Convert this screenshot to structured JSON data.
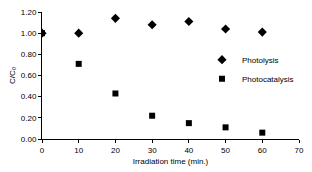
{
  "chart_data": {
    "type": "scatter",
    "x_label": "Irradiation time (min.)",
    "y_label": "C/C₀",
    "series": [
      {
        "name": "Photolysis",
        "color": "#000000",
        "marker": "diamond",
        "x": [
          0,
          10,
          20,
          30,
          40,
          50,
          60
        ],
        "values": [
          1.0,
          1.0,
          1.14,
          1.08,
          1.11,
          1.04,
          1.01
        ]
      },
      {
        "name": "Photocatalysis",
        "color": "#000000",
        "marker": "square",
        "x": [
          0,
          10,
          20,
          30,
          40,
          50,
          60
        ],
        "values": [
          1.0,
          0.71,
          0.43,
          0.22,
          0.15,
          0.11,
          0.06
        ]
      }
    ],
    "xlim": [
      0,
      70
    ],
    "xticks": [
      0,
      10,
      20,
      30,
      40,
      50,
      60,
      70
    ],
    "ylim": [
      0,
      1.2
    ],
    "yticks": [
      {
        "value": 0,
        "label": "0.00"
      },
      {
        "value": 0.2,
        "label": "0.20"
      },
      {
        "value": 0.4,
        "label": "0.40"
      },
      {
        "value": 0.6,
        "label": "0.60"
      },
      {
        "value": 0.8,
        "label": "0.80"
      },
      {
        "value": 1.0,
        "label": "1.00"
      },
      {
        "value": 1.2,
        "label": "1.20"
      }
    ],
    "grid": false,
    "legend": "right"
  }
}
